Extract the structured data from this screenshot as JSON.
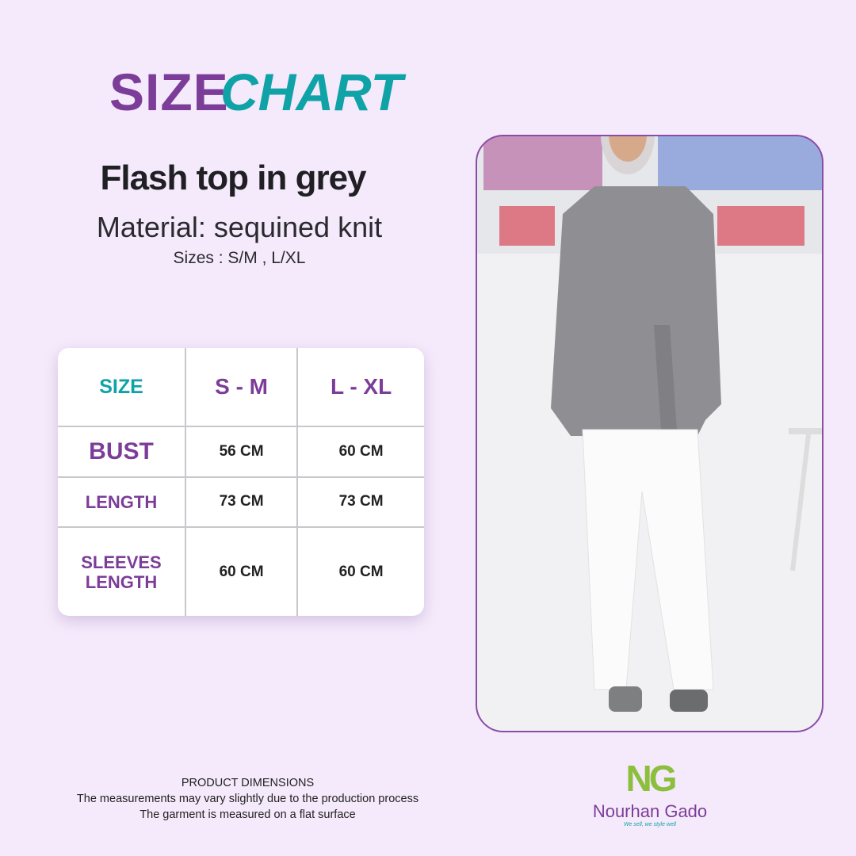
{
  "header": {
    "title_1": "SIZE",
    "title_2": "CHART"
  },
  "product": {
    "name": "Flash top in grey",
    "material": "Material: sequined knit",
    "sizes": "Sizes : S/M , L/XL"
  },
  "table": {
    "header": [
      "SIZE",
      "S - M",
      "L - XL"
    ],
    "rows": [
      [
        "BUST",
        "56 CM",
        "60 CM"
      ],
      [
        "LENGTH",
        "73 CM",
        "73 CM"
      ],
      [
        "SLEEVES LENGTH",
        "60 CM",
        "60 CM"
      ]
    ]
  },
  "footer": {
    "lines": [
      "PRODUCT DIMENSIONS",
      "The measurements may vary slightly due to the production process",
      "The garment is measured on a flat surface"
    ]
  },
  "logo": {
    "mark": "NG",
    "name": "Nourhan Gado",
    "tagline": "We sell, we style well"
  }
}
